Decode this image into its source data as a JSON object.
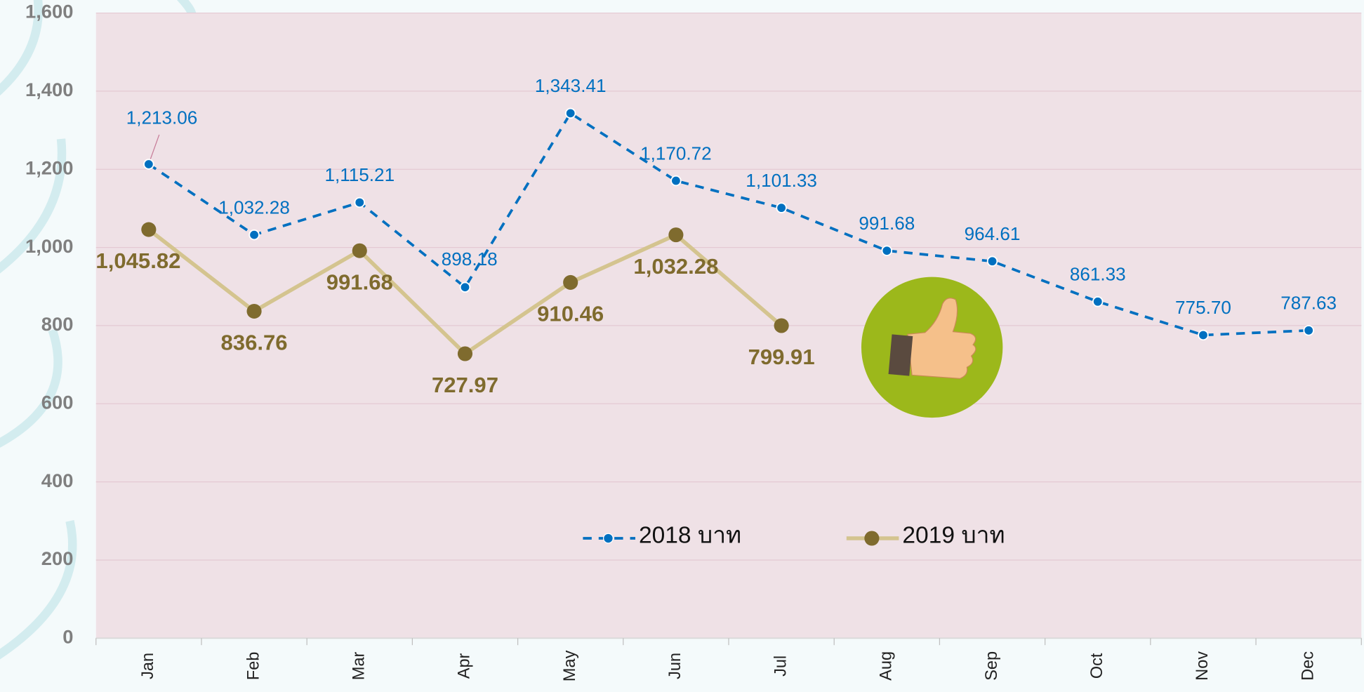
{
  "chart_data": {
    "type": "line",
    "categories": [
      "Jan",
      "Feb",
      "Mar",
      "Apr",
      "May",
      "Jun",
      "Jul",
      "Aug",
      "Sep",
      "Oct",
      "Nov",
      "Dec"
    ],
    "series": [
      {
        "name": "2018 บาท",
        "color": "#0070c0",
        "dashed": true,
        "values": [
          1213.06,
          1032.28,
          1115.21,
          898.18,
          1343.41,
          1170.72,
          1101.33,
          991.68,
          964.61,
          861.33,
          775.7,
          787.63
        ],
        "value_labels": [
          "1,213.06",
          "1,032.28",
          "1,115.21",
          "898.18",
          "1,343.41",
          "1,170.72",
          "1,101.33",
          "991.68",
          "964.61",
          "861.33",
          "775.70",
          "787.63"
        ]
      },
      {
        "name": "2019 บาท",
        "color": "#d4c48f",
        "marker_color": "#7f6b2e",
        "dashed": false,
        "values": [
          1045.82,
          836.76,
          991.68,
          727.97,
          910.46,
          1032.28,
          799.91,
          null,
          null,
          null,
          null,
          null
        ],
        "value_labels": [
          "1,045.82",
          "836.76",
          "991.68",
          "727.97",
          "910.46",
          "1,032.28",
          "799.91",
          null,
          null,
          null,
          null,
          null
        ]
      }
    ],
    "ylim": [
      0,
      1600
    ],
    "yticks": [
      0,
      200,
      400,
      600,
      800,
      {
        "value": 1000,
        "label": "1,000"
      },
      {
        "value": 1200,
        "label": "1,200"
      },
      {
        "value": 1400,
        "label": "1,400"
      },
      {
        "value": 1600,
        "label": "1,600"
      }
    ],
    "grid": true
  }
}
